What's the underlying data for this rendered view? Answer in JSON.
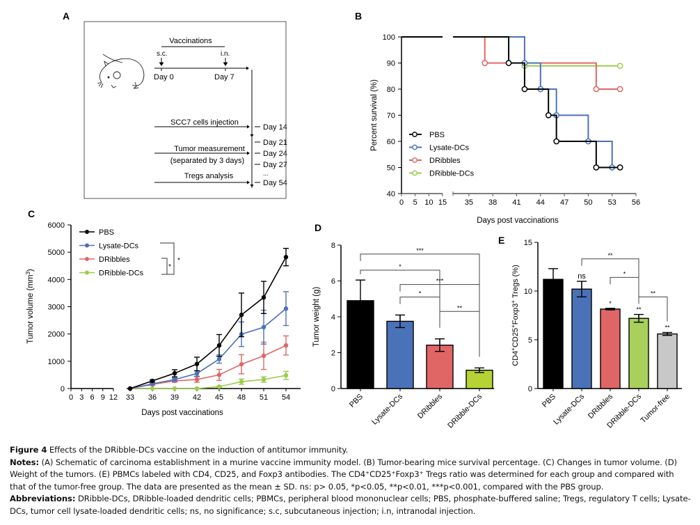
{
  "panel_a": {
    "label": "A",
    "vaccinations": "Vaccinations",
    "sc": "s.c.",
    "in": "i.n.",
    "day0": "Day 0",
    "day7": "Day 7",
    "events": [
      "SCC7 cells injection",
      "Tumor measurement",
      "(separated by 3 days)",
      "Tregs analysis"
    ],
    "days": [
      "Day 14",
      "Day 21",
      "Day 24",
      "Day 27",
      "...",
      "Day 54"
    ],
    "icon": "mouse-icon"
  },
  "chart_data": [
    {
      "panel": "B",
      "type": "line",
      "subtype": "kaplan-meier-step",
      "title": "",
      "xlabel": "Days post vaccinations",
      "ylabel": "Percent survival (%)",
      "ylim": [
        40,
        100
      ],
      "yticks": [
        "100",
        "90",
        "80",
        "70",
        "60",
        "50",
        "40"
      ],
      "xticks_left": [
        "0",
        "5",
        "10",
        "15"
      ],
      "xticks_right": [
        "35",
        "38",
        "41",
        "44",
        "47",
        "50",
        "53",
        "56"
      ],
      "xlim_segments": [
        [
          0,
          15
        ],
        [
          33,
          56
        ]
      ],
      "legend_position": "bottom-left",
      "series": [
        {
          "name": "PBS",
          "color": "#000000",
          "steps": [
            [
              0,
              100
            ],
            [
              40,
              90
            ],
            [
              42,
              80
            ],
            [
              45,
              70
            ],
            [
              46,
              60
            ],
            [
              51,
              50
            ],
            [
              54,
              50
            ]
          ],
          "censored": [
            [
              40,
              90
            ],
            [
              42,
              80
            ],
            [
              45,
              70
            ],
            [
              46,
              60
            ],
            [
              51,
              50
            ],
            [
              54,
              50
            ]
          ]
        },
        {
          "name": "Lysate-DCs",
          "color": "#4a72b8",
          "steps": [
            [
              0,
              100
            ],
            [
              42,
              90
            ],
            [
              44,
              80
            ],
            [
              46,
              70
            ],
            [
              50,
              60
            ],
            [
              53,
              50
            ]
          ],
          "censored": [
            [
              42,
              90
            ],
            [
              44,
              80
            ],
            [
              46,
              70
            ],
            [
              50,
              60
            ],
            [
              53,
              50
            ]
          ]
        },
        {
          "name": "DRibbles",
          "color": "#e06666",
          "steps": [
            [
              0,
              100
            ],
            [
              37,
              90
            ],
            [
              51,
              80
            ],
            [
              54,
              80
            ]
          ],
          "censored": [
            [
              37,
              90
            ],
            [
              51,
              80
            ],
            [
              54,
              80
            ]
          ]
        },
        {
          "name": "DRibble-DCs",
          "color": "#9ccc4c",
          "steps": [
            [
              42,
              88.9
            ],
            [
              54,
              88.9
            ]
          ],
          "censored": [
            [
              42,
              88.9
            ],
            [
              54,
              88.9
            ]
          ]
        }
      ]
    },
    {
      "panel": "C",
      "type": "line",
      "title": "",
      "xlabel": "Days post vaccinations",
      "ylabel": "Tumor volume (mm3)",
      "ylim": [
        0,
        6000
      ],
      "yticks": [
        "0",
        "1000",
        "2000",
        "3000",
        "4000",
        "5000",
        "6000"
      ],
      "xticks_left": [
        "0",
        "3",
        "6",
        "9",
        "12"
      ],
      "xticks_right": [
        "33",
        "36",
        "39",
        "42",
        "45",
        "48",
        "51",
        "54"
      ],
      "x": [
        33,
        36,
        39,
        42,
        45,
        48,
        51,
        54
      ],
      "legend_position": "top-left",
      "significance": [
        {
          "groups": [
            "Lysate-DCs",
            "DRibble-DCs"
          ],
          "label": "*"
        },
        {
          "groups": [
            "DRibbles",
            "DRibble-DCs"
          ],
          "label": "*"
        }
      ],
      "series": [
        {
          "name": "PBS",
          "color": "#000000",
          "values": [
            0,
            280,
            560,
            900,
            1580,
            2700,
            3340,
            4820
          ],
          "errors": [
            0,
            40,
            130,
            250,
            400,
            800,
            590,
            320
          ]
        },
        {
          "name": "Lysate-DCs",
          "color": "#4a72b8",
          "values": [
            0,
            170,
            330,
            550,
            1080,
            1990,
            2250,
            2930
          ],
          "errors": [
            0,
            30,
            60,
            100,
            150,
            450,
            620,
            620
          ]
        },
        {
          "name": "DRibbles",
          "color": "#e06666",
          "values": [
            0,
            150,
            280,
            330,
            500,
            890,
            1200,
            1580
          ],
          "errors": [
            0,
            30,
            50,
            100,
            200,
            350,
            500,
            350
          ]
        },
        {
          "name": "DRibble-DCs",
          "color": "#9ccc4c",
          "values": [
            0,
            0,
            0,
            0,
            70,
            250,
            330,
            480
          ],
          "errors": [
            0,
            0,
            0,
            0,
            20,
            100,
            100,
            150
          ]
        }
      ]
    },
    {
      "panel": "D",
      "type": "bar",
      "title": "",
      "xlabel": "",
      "ylabel": "Tumor weight (g)",
      "ylim": [
        0,
        8
      ],
      "yticks": [
        "0",
        "2",
        "4",
        "6",
        "8"
      ],
      "categories": [
        "PBS",
        "Lysate-DCs",
        "DRibbles",
        "DRibble-DCs"
      ],
      "values": [
        4.9,
        3.75,
        2.42,
        1.02
      ],
      "errors": [
        1.15,
        0.35,
        0.35,
        0.13
      ],
      "colors": [
        "#000000",
        "#4a72b8",
        "#e06666",
        "#b5d334"
      ],
      "significance": [
        {
          "from": 0,
          "to": 3,
          "label": "***",
          "level": 7.5
        },
        {
          "from": 0,
          "to": 2,
          "label": "*",
          "level": 6.6
        },
        {
          "from": 1,
          "to": 3,
          "label": "***",
          "level": 5.8
        },
        {
          "from": 1,
          "to": 2,
          "label": "*",
          "level": 5.1
        },
        {
          "from": 2,
          "to": 3,
          "label": "**",
          "level": 4.3
        }
      ]
    },
    {
      "panel": "E",
      "type": "bar",
      "title": "",
      "xlabel": "",
      "ylabel": "CD4+CD25+Foxp3+ Tregs (%)",
      "ylim": [
        0,
        15
      ],
      "yticks": [
        "0",
        "5",
        "10",
        "15"
      ],
      "categories": [
        "PBS",
        "Lysate-DCs",
        "DRibbles",
        "DRibble-DCs",
        "Tumor-free"
      ],
      "values": [
        11.2,
        10.2,
        8.15,
        7.2,
        5.6
      ],
      "errors": [
        1.1,
        0.8,
        0.08,
        0.4,
        0.15
      ],
      "colors": [
        "#000000",
        "#4a72b8",
        "#e06666",
        "#a8d05a",
        "#c8c8c8"
      ],
      "bar_labels": [
        "",
        "ns",
        "*",
        "**",
        "**"
      ],
      "significance": [
        {
          "from": 1,
          "to": 3,
          "label": "**",
          "level": 13.3
        },
        {
          "from": 2,
          "to": 3,
          "label": "*",
          "level": 11.4
        },
        {
          "from": 3,
          "to": 4,
          "label": "**",
          "level": 9.4
        }
      ]
    }
  ],
  "caption": {
    "title_bold": "Figure 4",
    "title": " Effects of the DRibble-DCs vaccine on the induction of antitumor immunity.",
    "notes_bold": "Notes:",
    "notes": " (A) Schematic of carcinoma establishment in a murine vaccine immunity model. (B) Tumor-bearing mice survival percentage. (C) Changes in tumor volume. (D) Weight of the tumors. (E) PBMCs labeled with CD4, CD25, and Foxp3 antibodies. The CD4⁺CD25⁺Foxp3⁺ Tregs ratio was determined for each group and compared with that of the tumor-free group. The data are presented as the mean ± SD. ns: p> 0.05, *p<0.05, **p<0.01, ***p<0.001, compared with the PBS group.",
    "abbr_bold": "Abbreviations:",
    "abbr": " DRibble-DCs, DRibble-loaded dendritic cells; PBMCs, peripheral blood mononuclear cells; PBS, phosphate-buffered saline; Tregs, regulatory T cells; Lysate-DCs, tumor cell lysate-loaded dendritic cells; ns, no significance; s.c, subcutaneous injection; i.n, intranodal injection."
  },
  "labels": {
    "B": "B",
    "C": "C",
    "D": "D",
    "E": "E"
  }
}
